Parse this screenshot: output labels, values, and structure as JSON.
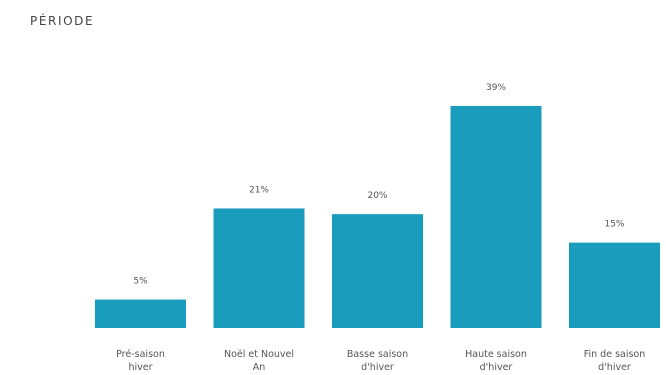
{
  "chart_data": {
    "type": "bar",
    "title": "PÉRIODE",
    "categories": [
      [
        "Pré-saison",
        "hiver"
      ],
      [
        "Noël et Nouvel",
        "An"
      ],
      [
        "Basse saison",
        "d'hiver"
      ],
      [
        "Haute saison",
        "d'hiver"
      ],
      [
        "Fin de saison",
        "d'hiver"
      ]
    ],
    "values": [
      5,
      21,
      20,
      39,
      15
    ],
    "value_labels": [
      "5%",
      "21%",
      "20%",
      "39%",
      "15%"
    ],
    "xlabel": "",
    "ylabel": "",
    "ylim": [
      0,
      39
    ],
    "grid": false,
    "bar_color": "#1a9dbd"
  }
}
